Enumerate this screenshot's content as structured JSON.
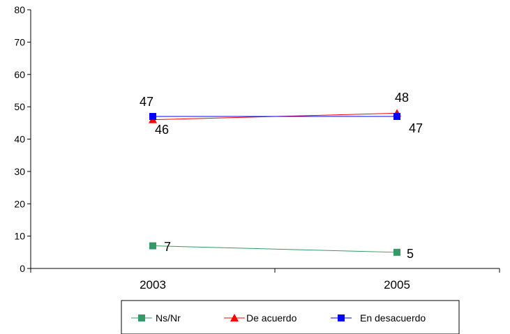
{
  "chart_data": {
    "type": "line",
    "categories": [
      "2003",
      "2005"
    ],
    "ylim": [
      0,
      80
    ],
    "yticks": [
      0,
      10,
      20,
      30,
      40,
      50,
      60,
      70,
      80
    ],
    "grid": false,
    "legend_position": "bottom",
    "series": [
      {
        "name": "Ns/Nr",
        "values": [
          7,
          5
        ],
        "color": "#339966",
        "marker": "square"
      },
      {
        "name": "De acuerdo",
        "values": [
          46,
          48
        ],
        "color": "#ff0000",
        "marker": "triangle"
      },
      {
        "name": "En desacuerdo",
        "values": [
          47,
          47
        ],
        "color": "#0000ff",
        "marker": "square"
      }
    ],
    "data_labels": [
      {
        "series": "Ns/Nr",
        "text": [
          "7",
          "5"
        ]
      },
      {
        "series": "De acuerdo",
        "text": [
          "46",
          "48"
        ]
      },
      {
        "series": "En desacuerdo",
        "text": [
          "47",
          "47"
        ]
      }
    ]
  }
}
